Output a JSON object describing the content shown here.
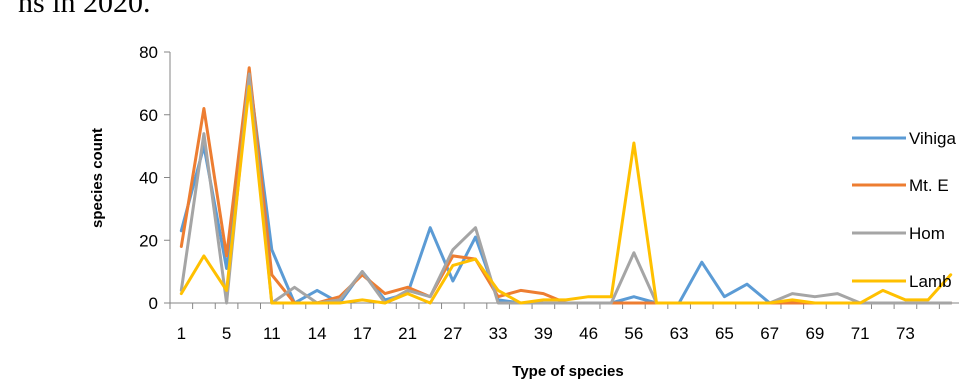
{
  "page": {
    "top_text": "ns in 2020."
  },
  "chart_data": {
    "type": "line",
    "title": "",
    "xlabel": "Type of species",
    "ylabel": "species count",
    "ylim": [
      0,
      80
    ],
    "yticks": [
      0,
      20,
      40,
      60,
      80
    ],
    "grid": false,
    "legend_position": "right",
    "categories": [
      "1",
      "",
      "5",
      "",
      "11",
      "",
      "14",
      "",
      "17",
      "",
      "21",
      "",
      "27",
      "",
      "33",
      "",
      "39",
      "",
      "46",
      "",
      "56",
      "",
      "63",
      "",
      "65",
      "",
      "67",
      "",
      "69",
      "",
      "71",
      "",
      "73",
      "",
      "74"
    ],
    "tick_labels": [
      "1",
      "5",
      "11",
      "14",
      "17",
      "21",
      "27",
      "33",
      "39",
      "46",
      "56",
      "63",
      "65",
      "67",
      "69",
      "71",
      "73"
    ],
    "series": [
      {
        "name": "Vihiga",
        "color": "#5b9bd5",
        "values": [
          23,
          50,
          11,
          73,
          17,
          0,
          4,
          0,
          10,
          1,
          3,
          24,
          7,
          21,
          1,
          0,
          0,
          0,
          0,
          0,
          2,
          0,
          0,
          13,
          2,
          6,
          0,
          0,
          0,
          0,
          0,
          0,
          0,
          0,
          0
        ]
      },
      {
        "name": "Mt. Elgon",
        "color": "#ed7d31",
        "values": [
          18,
          62,
          15,
          75,
          9,
          0,
          0,
          2,
          9,
          3,
          5,
          2,
          15,
          14,
          2,
          4,
          3,
          0,
          0,
          0,
          0,
          0,
          0,
          0,
          0,
          0,
          0,
          0,
          0,
          0,
          0,
          0,
          0,
          0,
          0
        ]
      },
      {
        "name": "Homa Bay",
        "color": "#a5a5a5",
        "values": [
          4,
          54,
          0,
          73,
          0,
          5,
          0,
          1,
          10,
          0,
          4,
          2,
          17,
          24,
          0,
          0,
          0,
          0,
          0,
          0,
          16,
          0,
          0,
          0,
          0,
          0,
          0,
          3,
          2,
          3,
          0,
          0,
          0,
          0,
          0
        ]
      },
      {
        "name": "Lambwe",
        "color": "#ffc000",
        "values": [
          3,
          15,
          4,
          69,
          0,
          0,
          0,
          0,
          1,
          0,
          3,
          0,
          12,
          14,
          4,
          0,
          1,
          1,
          2,
          2,
          51,
          0,
          0,
          0,
          0,
          0,
          0,
          1,
          0,
          0,
          0,
          4,
          1,
          1,
          9
        ]
      }
    ],
    "legend_labels": [
      "Vihiga",
      "Mt. E",
      "Hom",
      "Lamb"
    ]
  }
}
